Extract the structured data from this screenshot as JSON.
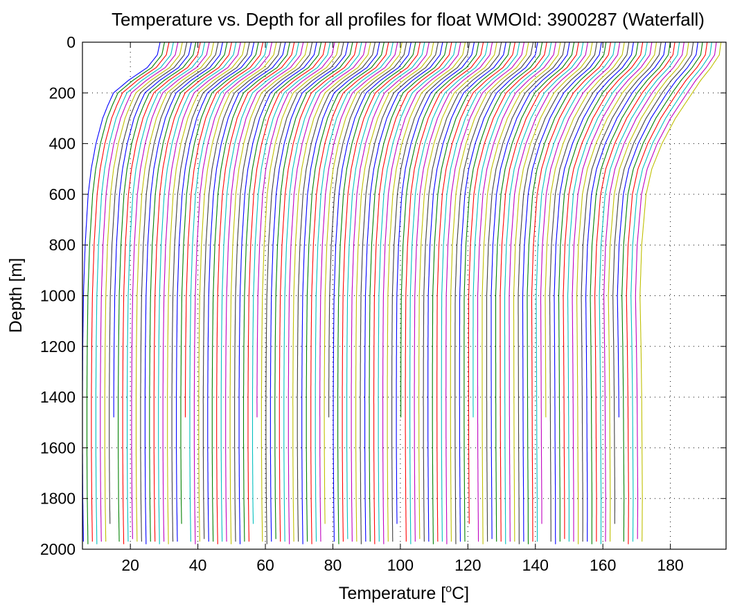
{
  "chart_data": {
    "type": "line",
    "title": "Temperature vs. Depth for all profiles for float WMOId: 3900287 (Waterfall)",
    "xlabel": "Temperature [°C]",
    "xlabel_main": "Temperature [",
    "xlabel_sup": "o",
    "xlabel_end": "C]",
    "ylabel": "Depth [m]",
    "xlim": [
      5.8,
      196.5
    ],
    "ylim": [
      0,
      2000
    ],
    "y_reversed": true,
    "grid": true,
    "grid_style": "dotted",
    "xticks": [
      20,
      40,
      60,
      80,
      100,
      120,
      140,
      160,
      180
    ],
    "xtick_labels": [
      "20",
      "40",
      "60",
      "80",
      "100",
      "120",
      "140",
      "160",
      "180"
    ],
    "yticks": [
      0,
      200,
      400,
      600,
      800,
      1000,
      1200,
      1400,
      1600,
      1800,
      2000
    ],
    "ytick_labels": [
      "0",
      "200",
      "400",
      "600",
      "800",
      "1000",
      "1200",
      "1400",
      "1600",
      "1800",
      "2000"
    ],
    "series_colors": [
      "#0000ff",
      "#008000",
      "#ff0000",
      "#00bfbf",
      "#bf00bf",
      "#bfbf00",
      "#404040"
    ],
    "profile_count": 125,
    "profile_offset_step": 1.325,
    "base_profile": {
      "depth": [
        0,
        50,
        100,
        150,
        200,
        250,
        300,
        400,
        500,
        600,
        800,
        1000,
        1200,
        1400,
        1600,
        1800,
        1975
      ],
      "temperature": [
        28.8,
        28.0,
        25.0,
        19.5,
        15.0,
        13.3,
        11.8,
        9.8,
        8.4,
        7.5,
        6.6,
        6.1,
        5.9,
        5.8,
        5.8,
        5.9,
        6.1
      ]
    },
    "profile_bottom_depths": [
      1975,
      1985,
      1975,
      1980,
      1975,
      1975,
      1900,
      1480,
      1975,
      1980,
      1975,
      1960,
      1975,
      1975,
      1980,
      1975
    ],
    "last_profile": {
      "depth": [
        0,
        50,
        100,
        150,
        200,
        250,
        300,
        400,
        500,
        600,
        800,
        1000,
        1200,
        1400,
        1600,
        1800,
        1975
      ],
      "temperature": [
        195.0,
        194.5,
        192.0,
        189.0,
        186.5,
        184.0,
        181.5,
        177.5,
        174.5,
        172.8,
        171.5,
        171.0,
        171.3,
        171.5,
        171.6,
        171.7,
        171.6
      ]
    }
  }
}
